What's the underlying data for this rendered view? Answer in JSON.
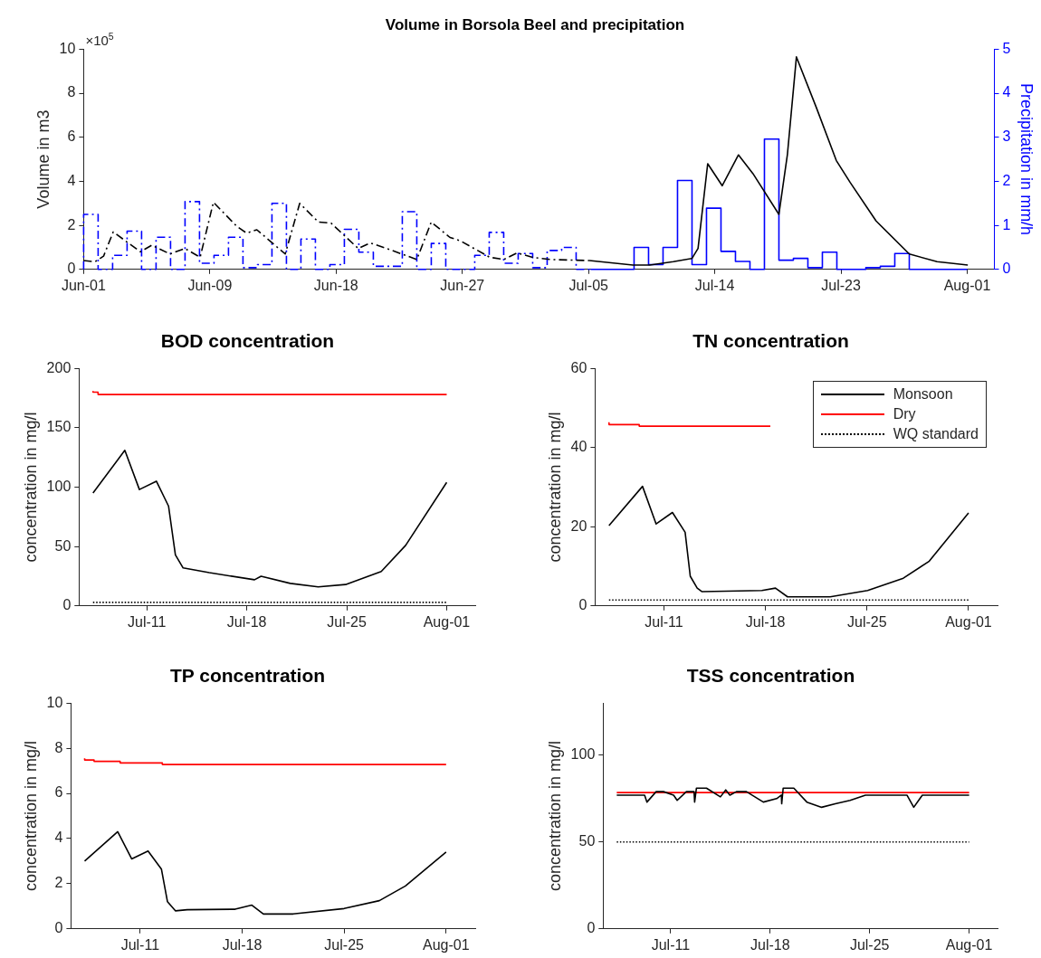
{
  "chart_data": [
    {
      "type": "line",
      "title": "Volume in Borsola Beel and precipitation",
      "ylabel": "Volume in m3",
      "y2label": "Precipitation in mm/h",
      "annotations": [
        "×10$^{5}$"
      ],
      "xlim": [
        "--06-01",
        "--08-02T21:00"
      ],
      "xticks": [
        {
          "value": "--06-01",
          "label": "Jun-01"
        },
        {
          "value": "--06-09T17:09",
          "label": "Jun-09"
        },
        {
          "value": "--06-18T10:17",
          "label": "Jun-18"
        },
        {
          "value": "--06-27T03:26",
          "label": "Jun-27"
        },
        {
          "value": "--07-05T20:34",
          "label": "Jul-05"
        },
        {
          "value": "--07-14T13:43",
          "label": "Jul-14"
        },
        {
          "value": "--07-23T06:51",
          "label": "Jul-23"
        },
        {
          "value": "--08-01",
          "label": "Aug-01"
        }
      ],
      "ylim": [
        0,
        10
      ],
      "yticks": [
        0,
        2,
        4,
        6,
        8,
        10
      ],
      "y2lim": [
        0,
        5
      ],
      "y2ticks": [
        0,
        1,
        2,
        3,
        4,
        5
      ],
      "series": [
        {
          "color": "#000000",
          "line_style": "dashed",
          "x": [
            "--06-01",
            "--06-01T19:00",
            "--06-02T09:00",
            "--06-03T01:00",
            "--06-04T22:00",
            "--06-05T17:00",
            "--06-06T23:00",
            "--06-08",
            "--06-09T01:00",
            "--06-09T23:00",
            "--06-11T14:00",
            "--06-12T06:00",
            "--06-12T23:00",
            "--06-14T22:00",
            "--06-15T22:00",
            "--06-17T05:00",
            "--06-18T02:00",
            "--06-19T23:00",
            "--06-20T19:00",
            "--06-21T22:00",
            "--06-24",
            "--06-25",
            "--06-26T07:00",
            "--06-27",
            "--06-29T01:00",
            "--06-30",
            "--06-30T22:00",
            "--07-02",
            "--07-03T05:00",
            "--07-05T22:00"
          ],
          "values": [
            0.4,
            0.35,
            0.6,
            1.7,
            0.8,
            1.1,
            0.7,
            0.95,
            0.55,
            3.05,
            1.95,
            1.65,
            1.8,
            0.7,
            3.0,
            2.15,
            2.1,
            0.95,
            1.2,
            0.95,
            0.45,
            2.15,
            1.45,
            1.3,
            0.55,
            0.45,
            0.75,
            0.55,
            0.45,
            0.4
          ]
        },
        {
          "color": "#000000",
          "line_style": "solid",
          "x": [
            "--07-05T22:00",
            "--07-08T22:00",
            "--07-10T02:00",
            "--07-11T17:00",
            "--07-13",
            "--07-13T10:00",
            "--07-14T02:00",
            "--07-15T02:00",
            "--07-16T05:00",
            "--07-17T05:00",
            "--07-19",
            "--07-19T14:00",
            "--07-20T05:00",
            "--07-21T14:00",
            "--07-22T23:00",
            "--07-23T22:00",
            "--07-25T17:00",
            "--07-28",
            "--07-29T22:00",
            "--08-01T01:00"
          ],
          "values": [
            0.4,
            0.2,
            0.2,
            0.35,
            0.5,
            0.95,
            4.8,
            3.8,
            5.2,
            4.35,
            2.5,
            5.2,
            9.65,
            7.35,
            4.95,
            3.95,
            2.2,
            0.7,
            0.35,
            0.2
          ]
        },
        {
          "type": "step",
          "axis": "y2",
          "color": "#0000ff",
          "line_style": "dashed",
          "x": [
            "--06-01",
            "--06-02",
            "--06-03",
            "--06-04",
            "--06-05",
            "--06-06",
            "--06-07",
            "--06-08",
            "--06-09",
            "--06-10",
            "--06-11",
            "--06-12",
            "--06-13",
            "--06-14",
            "--06-15",
            "--06-16",
            "--06-17",
            "--06-18",
            "--06-19",
            "--06-20",
            "--06-21",
            "--06-22",
            "--06-23",
            "--06-24",
            "--06-25",
            "--06-26",
            "--06-27",
            "--06-28",
            "--06-29",
            "--06-30",
            "--07-01",
            "--07-02",
            "--07-03",
            "--07-04",
            "--07-05",
            "--07-06"
          ],
          "values": [
            0,
            1.25,
            0,
            0.32,
            0.87,
            0,
            0.73,
            0,
            1.54,
            0.14,
            0.32,
            0.73,
            0.04,
            0.11,
            1.5,
            0,
            0.69,
            0,
            0.11,
            0.91,
            0.39,
            0.07,
            0.07,
            1.31,
            0,
            0.59,
            0,
            0,
            0.32,
            0.84,
            0.14,
            0.36,
            0.04,
            0.43,
            0.5,
            0
          ]
        },
        {
          "type": "step",
          "axis": "y2",
          "color": "#0000ff",
          "line_style": "solid",
          "x": [
            "--07-06",
            "--07-07",
            "--07-08",
            "--07-09",
            "--07-10",
            "--07-11",
            "--07-12",
            "--07-13",
            "--07-14",
            "--07-15",
            "--07-16",
            "--07-17",
            "--07-18",
            "--07-19",
            "--07-20",
            "--07-21",
            "--07-22",
            "--07-23",
            "--07-24",
            "--07-25",
            "--07-26",
            "--07-27",
            "--07-28",
            "--07-29",
            "--07-30",
            "--07-31",
            "--08-01"
          ],
          "values": [
            0,
            0,
            0,
            0,
            0.5,
            0.11,
            0.5,
            2.02,
            0.11,
            1.39,
            0.41,
            0.18,
            0,
            2.96,
            0.21,
            0.25,
            0.04,
            0.39,
            0,
            0,
            0.04,
            0.07,
            0.36,
            0,
            0,
            0,
            0
          ]
        }
      ]
    },
    {
      "type": "line",
      "title": "BOD concentration",
      "ylabel": "concentration in mg/l",
      "xlim": [
        "--07-06T06:00",
        "--08-03"
      ],
      "xticks": [
        {
          "value": "--07-11",
          "label": "Jul-11"
        },
        {
          "value": "--07-18",
          "label": "Jul-18"
        },
        {
          "value": "--07-25",
          "label": "Jul-25"
        },
        {
          "value": "--08-01",
          "label": "Aug-01"
        }
      ],
      "ylim": [
        0,
        200
      ],
      "yticks": [
        0,
        50,
        100,
        150,
        200
      ],
      "series": [
        {
          "color": "#000000",
          "line_style": "solid",
          "x": [
            "--07-07T05:30",
            "--07-09T11:00",
            "--07-10T11:30",
            "--07-11T16:00",
            "--07-12T12:30",
            "--07-13",
            "--07-13T13:00",
            "--07-15T09:00",
            "--07-18T13:00",
            "--07-19",
            "--07-21T01:00",
            "--07-23",
            "--07-24T22:00",
            "--07-27T10:00",
            "--07-29T03:00",
            "--08-01"
          ],
          "values": [
            95,
            131,
            98,
            105,
            84,
            43,
            32,
            28,
            22,
            25,
            19,
            16,
            18,
            29,
            51,
            104
          ]
        },
        {
          "type": "step",
          "color": "#ff0000",
          "line_style": "solid",
          "x": [
            "--07-07T05:30",
            "--07-07T14:00",
            "--07-10T03:00",
            "--08-01"
          ],
          "values": [
            181,
            180,
            178,
            178
          ]
        },
        {
          "color": "#000000",
          "line_style": "dotted",
          "x": [
            "--07-07T05:30",
            "--08-01"
          ],
          "values": [
            3,
            3
          ]
        }
      ]
    },
    {
      "type": "line",
      "title": "TN concentration",
      "ylabel": "concentration in mg/l",
      "legend": "top right",
      "xlim": [
        "--07-06T06:00",
        "--08-03"
      ],
      "xticks": [
        {
          "value": "--07-11",
          "label": "Jul-11"
        },
        {
          "value": "--07-18",
          "label": "Jul-18"
        },
        {
          "value": "--07-25",
          "label": "Jul-25"
        },
        {
          "value": "--08-01",
          "label": "Aug-01"
        }
      ],
      "ylim": [
        0,
        60
      ],
      "yticks": [
        0,
        20,
        40,
        60
      ],
      "series": [
        {
          "name": "Monsoon",
          "color": "#000000",
          "line_style": "solid",
          "x": [
            "--07-07T05:00",
            "--07-09T12:30",
            "--07-10T11:00",
            "--07-11T14:00",
            "--07-12T11:00",
            "--07-12T19:30",
            "--07-13T07:00",
            "--07-13T15:00",
            "--07-17T18:00",
            "--07-18T16:30",
            "--07-19T12:30",
            "--07-22T11:00",
            "--07-25T01:00",
            "--07-27T12:00",
            "--07-29T07:00",
            "--08-01"
          ],
          "values": [
            20.3,
            30.2,
            20.7,
            23.6,
            18.6,
            7.5,
            4.5,
            3.6,
            3.9,
            4.5,
            2.3,
            2.3,
            3.9,
            7,
            11.3,
            23.5
          ]
        },
        {
          "name": "Dry",
          "type": "step",
          "color": "#ff0000",
          "line_style": "solid",
          "x": [
            "--07-07T05:00",
            "--07-09T07:00",
            "--07-13T18:00",
            "--07-18T08:00"
          ],
          "values": [
            46.4,
            45.8,
            45.4,
            45.4
          ]
        },
        {
          "name": "WQ standard",
          "color": "#000000",
          "line_style": "dotted",
          "x": [
            "--07-07T05:00",
            "--08-01"
          ],
          "values": [
            1.5,
            1.5
          ]
        }
      ]
    },
    {
      "type": "line",
      "title": "TP concentration",
      "ylabel": "concentration in mg/l",
      "xlim": [
        "--07-06T06:00",
        "--08-03"
      ],
      "xticks": [
        {
          "value": "--07-11",
          "label": "Jul-11"
        },
        {
          "value": "--07-18",
          "label": "Jul-18"
        },
        {
          "value": "--07-25",
          "label": "Jul-25"
        },
        {
          "value": "--08-01",
          "label": "Aug-01"
        }
      ],
      "ylim": [
        0,
        10
      ],
      "yticks": [
        0,
        2,
        4,
        6,
        8,
        10
      ],
      "series": [
        {
          "color": "#000000",
          "line_style": "solid",
          "x": [
            "--07-07T04:30",
            "--07-09T11:00",
            "--07-10T10:00",
            "--07-11T13:00",
            "--07-12T11:00",
            "--07-12T21:00",
            "--07-13T10:00",
            "--07-14T05:30",
            "--07-17T12:30",
            "--07-18T16:00",
            "--07-19T11:00",
            "--07-21T12:00",
            "--07-25",
            "--07-27T10:00",
            "--07-29T05:00",
            "--08-01"
          ],
          "values": [
            3.0,
            4.3,
            3.1,
            3.45,
            2.65,
            1.2,
            0.8,
            0.85,
            0.87,
            1.05,
            0.66,
            0.66,
            0.9,
            1.25,
            1.9,
            3.4
          ]
        },
        {
          "type": "step",
          "color": "#ff0000",
          "line_style": "solid",
          "x": [
            "--07-07T04:30",
            "--07-07T20:00",
            "--07-09T15:00",
            "--07-12T12:30",
            "--07-19T16:00",
            "--08-01"
          ],
          "values": [
            7.55,
            7.48,
            7.42,
            7.35,
            7.28,
            7.28
          ]
        }
      ]
    },
    {
      "type": "line",
      "title": "TSS concentration",
      "ylabel": "concentration in mg/l",
      "xlim": [
        "--07-06T06:00",
        "--08-03"
      ],
      "xticks": [
        {
          "value": "--07-11",
          "label": "Jul-11"
        },
        {
          "value": "--07-18",
          "label": "Jul-18"
        },
        {
          "value": "--07-25",
          "label": "Jul-25"
        },
        {
          "value": "--08-01",
          "label": "Aug-01"
        }
      ],
      "ylim": [
        0,
        130
      ],
      "yticks": [
        0,
        50,
        100
      ],
      "series": [
        {
          "color": "#000000",
          "line_style": "solid",
          "x": [
            "--07-07T05:00",
            "--07-09T04:00",
            "--07-09T08:00",
            "--07-09T23:30",
            "--07-10T12:00",
            "--07-11T05:00",
            "--07-11T11:00",
            "--07-12T02:30",
            "--07-12T15:30",
            "--07-12T16:30",
            "--07-12T19:30",
            "--07-13T12:30",
            "--07-14T12:00",
            "--07-14T21:00",
            "--07-15T04:00",
            "--07-15T15:00",
            "--07-16T08:00",
            "--07-17T12:30",
            "--07-18T11:00",
            "--07-18T19:00",
            "--07-18T19:30",
            "--07-18T22:00",
            "--07-19T16:00",
            "--07-20T14:00",
            "--07-21T15:00",
            "--07-22T14:00",
            "--07-23T15:00",
            "--07-24T17:00",
            "--07-27T15:00",
            "--07-28T02:30",
            "--07-28T17:00",
            "--08-01"
          ],
          "values": [
            77,
            77,
            73,
            79,
            79,
            77,
            74,
            79,
            79,
            73,
            81,
            81,
            76,
            80,
            77,
            79,
            79,
            73,
            75,
            77,
            72,
            81,
            81,
            73,
            70,
            72,
            74,
            77,
            77,
            70,
            77,
            77
          ]
        },
        {
          "type": "step",
          "color": "#ff0000",
          "line_style": "solid",
          "x": [
            "--07-07T05:00",
            "--08-01"
          ],
          "values": [
            78.5,
            78.5
          ]
        },
        {
          "color": "#000000",
          "line_style": "dotted",
          "x": [
            "--07-07T05:00",
            "--08-01"
          ],
          "values": [
            50,
            50
          ]
        }
      ]
    }
  ]
}
